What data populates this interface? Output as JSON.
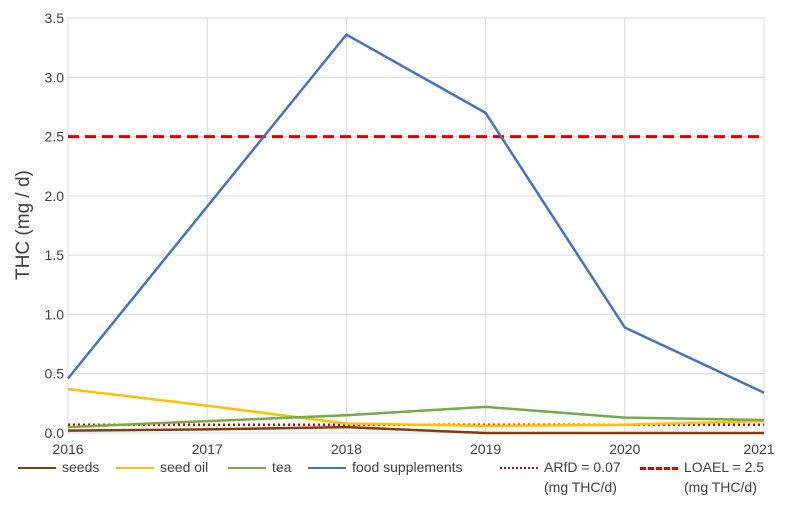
{
  "chart_data": {
    "type": "line",
    "ylabel": "THC (mg / d)",
    "xlabel": "",
    "x": [
      "2016",
      "2017",
      "2018",
      "2019",
      "2020",
      "2021"
    ],
    "ylim": [
      0,
      3.5
    ],
    "yticks": [
      "0.0",
      "0.5",
      "1.0",
      "1.5",
      "2.0",
      "2.5",
      "3.0",
      "3.5"
    ],
    "grid": true,
    "legend_position": "bottom",
    "series": [
      {
        "name": "seeds",
        "color": "#843C0C",
        "style": "solid",
        "values": [
          0.02,
          0.03,
          0.05,
          0.0,
          0.0,
          0.0
        ]
      },
      {
        "name": "seed oil",
        "color": "#FFC000",
        "style": "solid",
        "values": [
          0.37,
          0.23,
          0.08,
          0.06,
          0.07,
          0.1
        ]
      },
      {
        "name": "tea",
        "color": "#70AD47",
        "style": "solid",
        "values": [
          0.05,
          0.1,
          0.15,
          0.22,
          0.13,
          0.11
        ]
      },
      {
        "name": "food supplements",
        "color": "#4472C4",
        "style": "solid",
        "values": [
          0.46,
          1.91,
          3.36,
          2.7,
          0.89,
          0.34
        ]
      }
    ],
    "reference_lines": [
      {
        "name": "ARfD = 0.07",
        "note": "(mg THC/d)",
        "value": 0.07,
        "color": "#E00000",
        "style": "dotted"
      },
      {
        "name": "LOAEL = 2.5",
        "note": "(mg THC/d)",
        "value": 2.5,
        "color": "#E00000",
        "style": "dashed"
      }
    ]
  }
}
